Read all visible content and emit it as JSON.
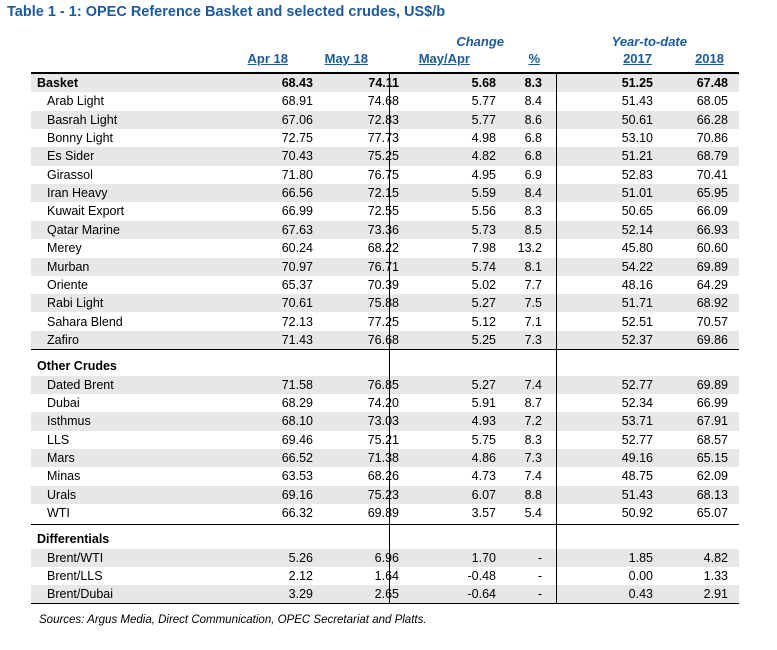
{
  "title": "Table 1 - 1: OPEC Reference Basket and selected crudes, US$/b",
  "headers": {
    "change": "Change",
    "ytd": "Year-to-date",
    "apr18": "Apr 18",
    "may18": "May 18",
    "mayapr": "May/Apr",
    "pct": "%",
    "y2017": "2017",
    "y2018": "2018"
  },
  "sections": [
    {
      "label": "Basket",
      "summary": [
        "68.43",
        "74.11",
        "5.68",
        "8.3",
        "51.25",
        "67.48"
      ],
      "rows": [
        {
          "name": "Arab Light",
          "v": [
            "68.91",
            "74.68",
            "5.77",
            "8.4",
            "51.43",
            "68.05"
          ]
        },
        {
          "name": "Basrah Light",
          "v": [
            "67.06",
            "72.83",
            "5.77",
            "8.6",
            "50.61",
            "66.28"
          ]
        },
        {
          "name": "Bonny Light",
          "v": [
            "72.75",
            "77.73",
            "4.98",
            "6.8",
            "53.10",
            "70.86"
          ]
        },
        {
          "name": "Es Sider",
          "v": [
            "70.43",
            "75.25",
            "4.82",
            "6.8",
            "51.21",
            "68.79"
          ]
        },
        {
          "name": "Girassol",
          "v": [
            "71.80",
            "76.75",
            "4.95",
            "6.9",
            "52.83",
            "70.41"
          ]
        },
        {
          "name": "Iran Heavy",
          "v": [
            "66.56",
            "72.15",
            "5.59",
            "8.4",
            "51.01",
            "65.95"
          ]
        },
        {
          "name": "Kuwait Export",
          "v": [
            "66.99",
            "72.55",
            "5.56",
            "8.3",
            "50.65",
            "66.09"
          ]
        },
        {
          "name": "Qatar Marine",
          "v": [
            "67.63",
            "73.36",
            "5.73",
            "8.5",
            "52.14",
            "66.93"
          ]
        },
        {
          "name": "Merey",
          "v": [
            "60.24",
            "68.22",
            "7.98",
            "13.2",
            "45.80",
            "60.60"
          ]
        },
        {
          "name": "Murban",
          "v": [
            "70.97",
            "76.71",
            "5.74",
            "8.1",
            "54.22",
            "69.89"
          ]
        },
        {
          "name": "Oriente",
          "v": [
            "65.37",
            "70.39",
            "5.02",
            "7.7",
            "48.16",
            "64.29"
          ]
        },
        {
          "name": "Rabi Light",
          "v": [
            "70.61",
            "75.88",
            "5.27",
            "7.5",
            "51.71",
            "68.92"
          ]
        },
        {
          "name": "Sahara Blend",
          "v": [
            "72.13",
            "77.25",
            "5.12",
            "7.1",
            "52.51",
            "70.57"
          ]
        },
        {
          "name": "Zafiro",
          "v": [
            "71.43",
            "76.68",
            "5.25",
            "7.3",
            "52.37",
            "69.86"
          ]
        }
      ]
    },
    {
      "label": "Other Crudes",
      "summary": [],
      "rows": [
        {
          "name": "Dated Brent",
          "v": [
            "71.58",
            "76.85",
            "5.27",
            "7.4",
            "52.77",
            "69.89"
          ]
        },
        {
          "name": "Dubai",
          "v": [
            "68.29",
            "74.20",
            "5.91",
            "8.7",
            "52.34",
            "66.99"
          ]
        },
        {
          "name": "Isthmus",
          "v": [
            "68.10",
            "73.03",
            "4.93",
            "7.2",
            "53.71",
            "67.91"
          ]
        },
        {
          "name": "LLS",
          "v": [
            "69.46",
            "75.21",
            "5.75",
            "8.3",
            "52.77",
            "68.57"
          ]
        },
        {
          "name": "Mars",
          "v": [
            "66.52",
            "71.38",
            "4.86",
            "7.3",
            "49.16",
            "65.15"
          ]
        },
        {
          "name": "Minas",
          "v": [
            "63.53",
            "68.26",
            "4.73",
            "7.4",
            "48.75",
            "62.09"
          ]
        },
        {
          "name": "Urals",
          "v": [
            "69.16",
            "75.23",
            "6.07",
            "8.8",
            "51.43",
            "68.13"
          ]
        },
        {
          "name": "WTI",
          "v": [
            "66.32",
            "69.89",
            "3.57",
            "5.4",
            "50.92",
            "65.07"
          ]
        }
      ]
    },
    {
      "label": "Differentials",
      "summary": [],
      "rows": [
        {
          "name": "Brent/WTI",
          "v": [
            "5.26",
            "6.96",
            "1.70",
            "-",
            "1.85",
            "4.82"
          ]
        },
        {
          "name": "Brent/LLS",
          "v": [
            "2.12",
            "1.64",
            "-0.48",
            "-",
            "0.00",
            "1.33"
          ]
        },
        {
          "name": "Brent/Dubai",
          "v": [
            "3.29",
            "2.65",
            "-0.64",
            "-",
            "0.43",
            "2.91"
          ]
        }
      ]
    }
  ],
  "source": "Sources:  Argus Media, Direct Communication, OPEC Secretariat and Platts."
}
